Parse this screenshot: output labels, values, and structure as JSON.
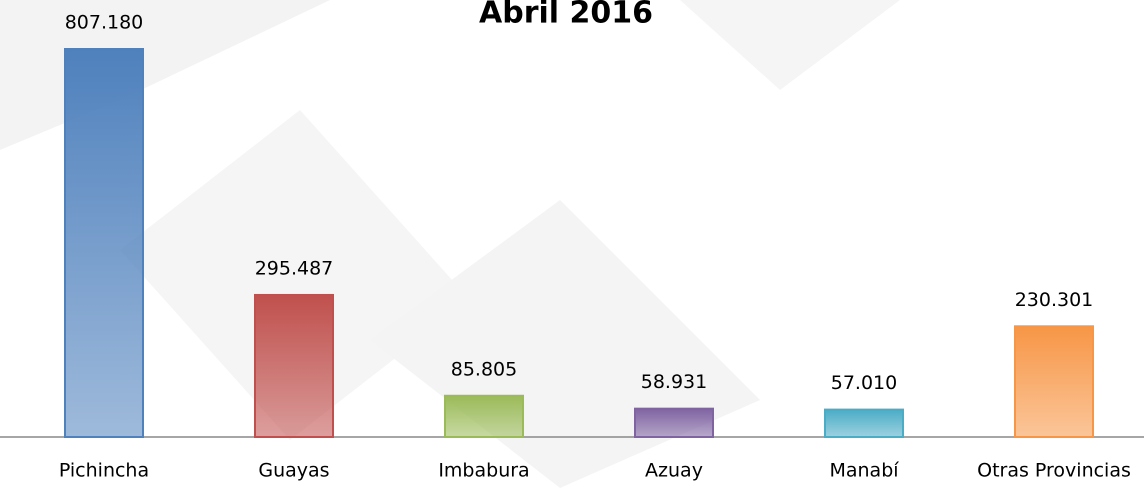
{
  "chart_data": {
    "type": "bar",
    "title": "Abril 2016",
    "categories": [
      "Pichincha",
      "Guayas",
      "Imbabura",
      "Azuay",
      "Manabí",
      "Otras Provincias"
    ],
    "values": [
      807180,
      295487,
      85805,
      58931,
      57010,
      230301
    ],
    "value_labels": [
      "807.180",
      "295.487",
      "85.805",
      "58.931",
      "57.010",
      "230.301"
    ],
    "colors": [
      "#4f81bd",
      "#c0504d",
      "#9bbb59",
      "#8064a2",
      "#4bacc6",
      "#f79646"
    ]
  }
}
